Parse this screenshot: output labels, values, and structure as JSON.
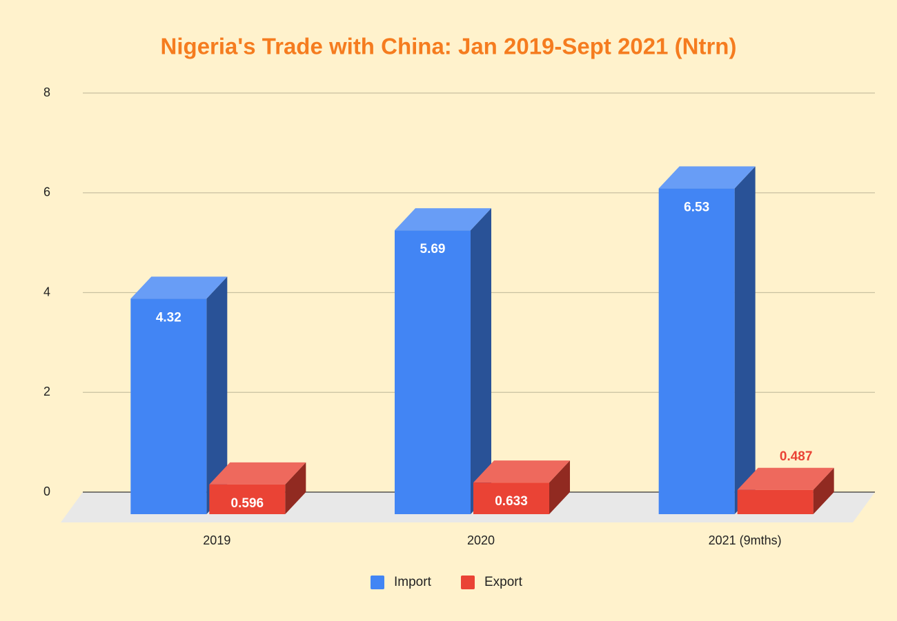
{
  "chart_data": {
    "type": "bar3d",
    "title": "Nigeria's Trade with China: Jan 2019-Sept 2021 (Ntrn)",
    "categories": [
      "2019",
      "2020",
      "2021 (9mths)"
    ],
    "series": [
      {
        "name": "Import",
        "color": "#4285f4",
        "values": [
          4.32,
          5.69,
          6.53
        ]
      },
      {
        "name": "Export",
        "color": "#ea4335",
        "values": [
          0.596,
          0.633,
          0.487
        ]
      }
    ],
    "ylim": [
      0,
      8
    ],
    "yticks": [
      0,
      2,
      4,
      6,
      8
    ],
    "grid": true,
    "legend": "bottom"
  }
}
